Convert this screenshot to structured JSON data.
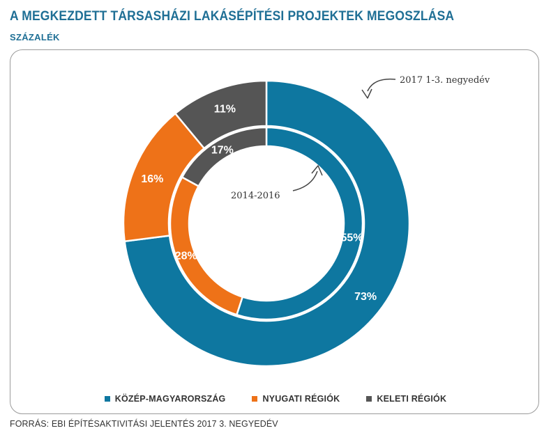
{
  "title": "A MEGKEZDETT TÁRSASHÁZI LAKÁSÉPÍTÉSI PROJEKTEK MEGOSZLÁSA",
  "subtitle": "SZÁZALÉK",
  "source": "FORRÁS: EBI ÉPÍTÉSAKTIVITÁSI JELENTÉS 2017 3. NEGYEDÉV",
  "chart_data": {
    "type": "pie",
    "subtype": "nested-donut",
    "categories": [
      "KÖZÉP-MAGYARORSZÁG",
      "NYUGATI RÉGIÓK",
      "KELETI RÉGIÓK"
    ],
    "colors": [
      "#0e77a0",
      "#ee7218",
      "#555555"
    ],
    "series": [
      {
        "name": "2017 1-3. negyedév",
        "ring": "outer",
        "values": [
          73,
          16,
          11
        ],
        "labels": [
          "73%",
          "16%",
          "11%"
        ]
      },
      {
        "name": "2014-2016",
        "ring": "inner",
        "values": [
          55,
          28,
          17
        ],
        "labels": [
          "55%",
          "28%",
          "17%"
        ]
      }
    ],
    "legend_position": "bottom"
  }
}
